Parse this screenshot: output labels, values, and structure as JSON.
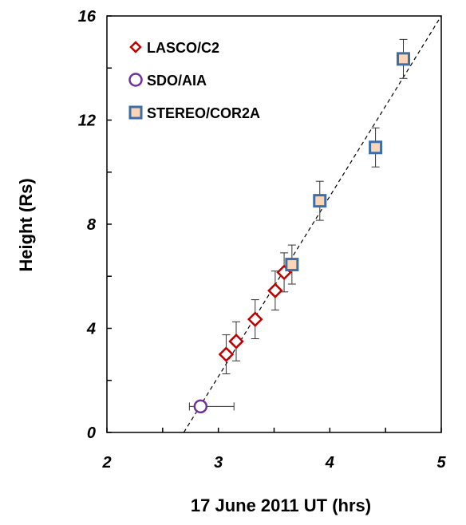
{
  "chart_data": {
    "type": "scatter",
    "xlabel": "17 June 2011 UT (hrs)",
    "ylabel": "Height (Rs)",
    "xlim": [
      2,
      5
    ],
    "ylim": [
      0,
      16
    ],
    "x_ticks": [
      2,
      3,
      4,
      5
    ],
    "y_ticks": [
      0,
      4,
      8,
      12,
      16
    ],
    "grid": false,
    "legend_position": "top-left",
    "fit_line": {
      "style": "dashed",
      "color": "#000000",
      "points": [
        [
          2.69,
          0
        ],
        [
          5.0,
          16
        ]
      ]
    },
    "series": [
      {
        "name": "LASCO/C2",
        "marker": "diamond",
        "stroke": "#c00000",
        "fill": "#ffffff",
        "points": [
          {
            "x": 3.07,
            "y": 3.0,
            "yerr": 0.75
          },
          {
            "x": 3.16,
            "y": 3.5,
            "yerr": 0.75
          },
          {
            "x": 3.33,
            "y": 4.35,
            "yerr": 0.75
          },
          {
            "x": 3.51,
            "y": 5.45,
            "yerr": 0.75
          },
          {
            "x": 3.59,
            "y": 6.15,
            "yerr": 0.75
          }
        ]
      },
      {
        "name": "SDO/AIA",
        "marker": "circle",
        "stroke": "#7030a0",
        "fill": "#ffffff",
        "points": [
          {
            "x": 2.84,
            "y": 1.0,
            "xerr": [
              0.1,
              0.3
            ]
          }
        ]
      },
      {
        "name": "STEREO/COR2A",
        "marker": "square",
        "stroke": "#3e6ea8",
        "fill": "#fbd5b5",
        "points": [
          {
            "x": 3.66,
            "y": 6.45,
            "yerr": 0.75
          },
          {
            "x": 3.91,
            "y": 8.9,
            "yerr": 0.75
          },
          {
            "x": 4.41,
            "y": 10.95,
            "yerr": 0.75
          },
          {
            "x": 4.66,
            "y": 14.35,
            "yerr": 0.75
          }
        ]
      }
    ]
  }
}
